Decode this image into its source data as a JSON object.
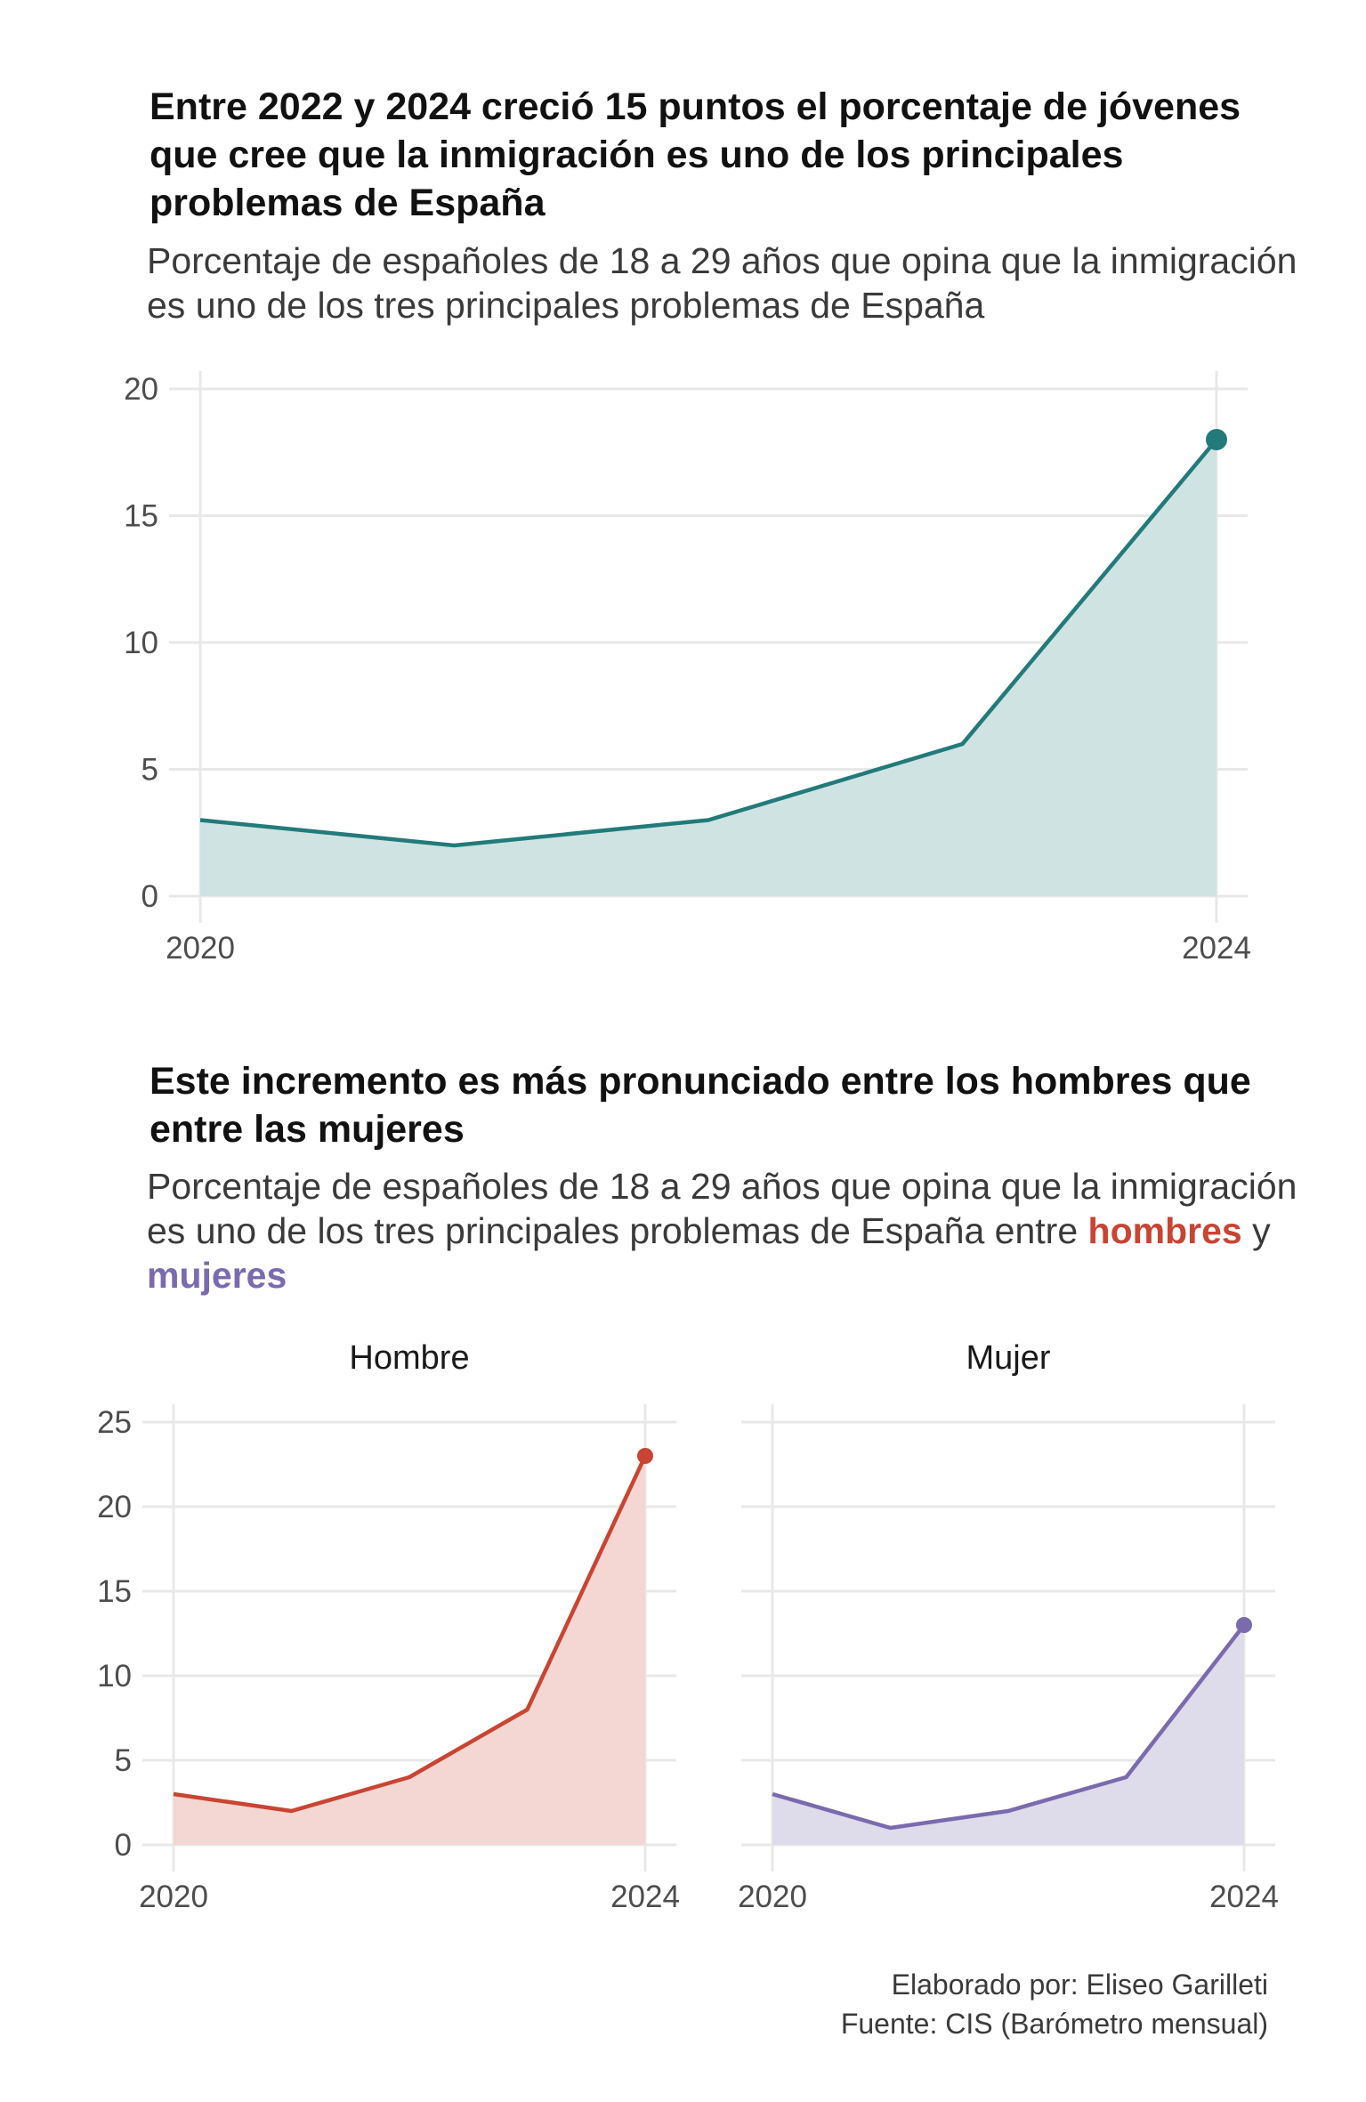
{
  "chart1": {
    "title": "Entre 2022 y 2024 creció  15 puntos el porcentaje de jóvenes que cree que la inmigración es uno de los principales problemas de España",
    "subtitle": "Porcentaje de españoles de 18 a 29 años que opina que la inmigración es uno de los tres principales problemas de España"
  },
  "chart2": {
    "title": "Este incremento es más pronunciado entre los hombres que entre las mujeres",
    "subtitle_prefix": "Porcentaje de españoles de 18 a 29 años que opina que la inmigración es uno de los tres principales problemas de España entre",
    "subtitle_men": "hombres",
    "subtitle_and": "y",
    "subtitle_women": "mujeres"
  },
  "caption": {
    "line1": "Elaborado por: Eliseo Garilleti",
    "line2": "Fuente: CIS (Barómetro mensual)"
  },
  "chart_data": [
    {
      "type": "area",
      "x": [
        2020,
        2021,
        2022,
        2023,
        2024
      ],
      "x_tick_labels": [
        "2020",
        "2024"
      ],
      "series": [
        {
          "values": [
            3,
            2,
            3,
            6,
            18
          ],
          "color": "#237a7a",
          "fill": "#cfe3e2"
        }
      ],
      "ylim": [
        0,
        20
      ],
      "y_ticks": [
        0,
        5,
        10,
        15,
        20
      ],
      "xlim": [
        2020,
        2024
      ],
      "grid": true
    },
    {
      "type": "area",
      "x": [
        2020,
        2021,
        2022,
        2023,
        2024
      ],
      "x_tick_labels": [
        "2020",
        "2024"
      ],
      "ylim": [
        0,
        25
      ],
      "y_ticks": [
        0,
        5,
        10,
        15,
        20,
        25
      ],
      "grid": true,
      "facets": [
        {
          "label": "Hombre",
          "values": [
            3,
            2,
            4,
            8,
            23
          ],
          "color": "#c94433",
          "fill": "#f4d6d2"
        },
        {
          "label": "Mujer",
          "values": [
            3,
            1,
            2,
            4,
            13
          ],
          "color": "#7a6aae",
          "fill": "#dedbea"
        }
      ]
    }
  ]
}
